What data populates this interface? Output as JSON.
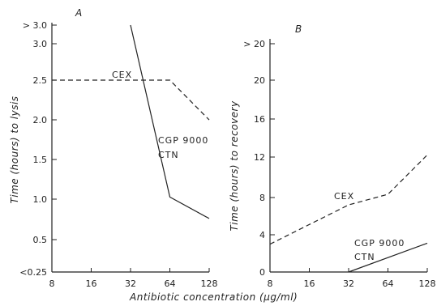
{
  "chart_data": [
    {
      "type": "line",
      "panel_label": "A",
      "ylabel": "Time (hours) to lysis",
      "x_ticks": [
        "8",
        "16",
        "32",
        "64",
        "128"
      ],
      "y_ticks": [
        "<0.25",
        "0.5",
        "1.0",
        "1.5",
        "2.0",
        "2.5",
        "3.0",
        "> 3.0"
      ],
      "series": [
        {
          "name": "CEX",
          "style": "dashed",
          "x": [
            8,
            64,
            128
          ],
          "y": [
            2.5,
            2.5,
            2.0
          ]
        },
        {
          "name": "CGP 9000 CTN",
          "style": "solid",
          "x": [
            32,
            64,
            128
          ],
          "y": [
            3.2,
            1.03,
            0.76
          ]
        }
      ]
    },
    {
      "type": "line",
      "panel_label": "B",
      "ylabel": "Time (hours) to recovery",
      "x_ticks": [
        "8",
        "16",
        "32",
        "64",
        "128"
      ],
      "y_ticks": [
        "0",
        "4",
        "8",
        "12",
        "16",
        "20",
        "> 20"
      ],
      "series": [
        {
          "name": "CEX",
          "style": "dashed",
          "x": [
            8,
            32,
            64,
            128
          ],
          "y": [
            2.9,
            7.0,
            8.1,
            12.2
          ]
        },
        {
          "name": "CGP 9000 CTN",
          "style": "solid",
          "x": [
            32,
            128
          ],
          "y": [
            0,
            3.0
          ]
        }
      ]
    }
  ],
  "shared_xlabel": "Antibiotic concentration (µg/ml)",
  "labels": {
    "a_cex": "CEX",
    "a_cgp": "CGP 9000",
    "a_ctn": "CTN",
    "b_cex": "CEX",
    "b_cgp": "CGP 9000",
    "b_ctn": "CTN"
  }
}
